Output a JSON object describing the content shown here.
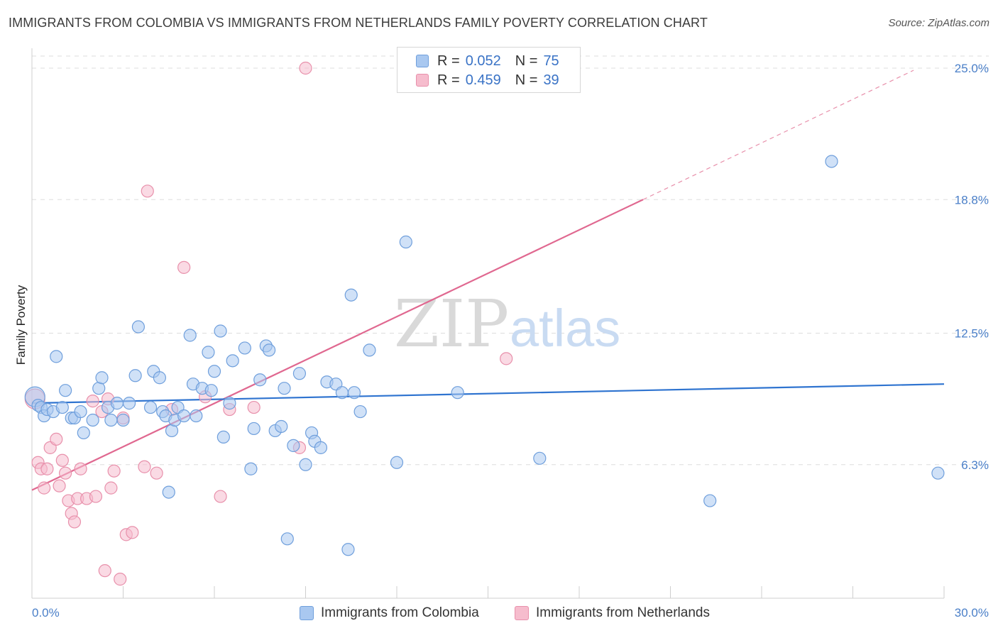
{
  "title": "IMMIGRANTS FROM COLOMBIA VS IMMIGRANTS FROM NETHERLANDS FAMILY POVERTY CORRELATION CHART",
  "source": "Source: ZipAtlas.com",
  "colors": {
    "blue_fill": "#a9c8f0",
    "blue_stroke": "#6f9fdc",
    "blue_line": "#2f74d0",
    "pink_fill": "#f6bccd",
    "pink_stroke": "#e890ab",
    "pink_line": "#e06890",
    "grid": "#dddddd",
    "tick_label": "#4a7fc8"
  },
  "legend": {
    "rows": [
      {
        "r_label": "R =",
        "r_value": "0.052",
        "n_label": "N =",
        "n_value": "75"
      },
      {
        "r_label": "R =",
        "r_value": "0.459",
        "n_label": "N =",
        "n_value": "39"
      }
    ]
  },
  "bottom_legend": {
    "series1": "Immigrants from Colombia",
    "series2": "Immigrants from Netherlands"
  },
  "chart_data": {
    "type": "scatter",
    "title": "IMMIGRANTS FROM COLOMBIA VS IMMIGRANTS FROM NETHERLANDS FAMILY POVERTY CORRELATION CHART",
    "xlabel": "",
    "ylabel": "Family Poverty",
    "xlim": [
      0,
      30
    ],
    "ylim": [
      0,
      25.6
    ],
    "x_tick_labels": [
      "0.0%",
      "30.0%"
    ],
    "y_ticks": [
      6.3,
      12.5,
      18.8,
      25.0
    ],
    "y_tick_labels": [
      "6.3%",
      "12.5%",
      "18.8%",
      "25.0%"
    ],
    "watermark": "ZIPatlas",
    "series": [
      {
        "name": "Immigrants from Colombia",
        "color": "blue",
        "trend": {
          "x": [
            0,
            30
          ],
          "y": [
            9.2,
            10.1
          ],
          "dashed_extension": false
        },
        "points": [
          [
            0.1,
            9.5
          ],
          [
            0.2,
            9.1
          ],
          [
            0.3,
            9.0
          ],
          [
            0.4,
            8.6
          ],
          [
            0.5,
            8.9
          ],
          [
            0.7,
            8.8
          ],
          [
            0.8,
            11.4
          ],
          [
            1.0,
            9.0
          ],
          [
            1.1,
            9.8
          ],
          [
            1.3,
            8.5
          ],
          [
            1.4,
            8.5
          ],
          [
            1.6,
            8.8
          ],
          [
            1.7,
            7.8
          ],
          [
            2.0,
            8.4
          ],
          [
            2.2,
            9.9
          ],
          [
            2.3,
            10.4
          ],
          [
            2.5,
            9.0
          ],
          [
            2.6,
            8.4
          ],
          [
            2.8,
            9.2
          ],
          [
            3.0,
            8.4
          ],
          [
            3.2,
            9.2
          ],
          [
            3.4,
            10.5
          ],
          [
            3.5,
            12.8
          ],
          [
            3.9,
            9.0
          ],
          [
            4.0,
            10.7
          ],
          [
            4.2,
            10.4
          ],
          [
            4.3,
            8.8
          ],
          [
            4.4,
            8.6
          ],
          [
            4.5,
            5.0
          ],
          [
            4.6,
            7.9
          ],
          [
            4.7,
            8.4
          ],
          [
            4.8,
            9.0
          ],
          [
            5.0,
            8.6
          ],
          [
            5.2,
            12.4
          ],
          [
            5.3,
            10.1
          ],
          [
            5.4,
            8.6
          ],
          [
            5.6,
            9.9
          ],
          [
            5.8,
            11.6
          ],
          [
            5.9,
            9.8
          ],
          [
            6.0,
            10.7
          ],
          [
            6.2,
            12.6
          ],
          [
            6.3,
            7.6
          ],
          [
            6.5,
            9.2
          ],
          [
            6.6,
            11.2
          ],
          [
            7.0,
            11.8
          ],
          [
            7.2,
            6.1
          ],
          [
            7.3,
            8.0
          ],
          [
            7.5,
            10.3
          ],
          [
            7.7,
            11.9
          ],
          [
            7.8,
            11.7
          ],
          [
            8.0,
            7.9
          ],
          [
            8.2,
            8.1
          ],
          [
            8.3,
            9.9
          ],
          [
            8.4,
            2.8
          ],
          [
            8.6,
            7.2
          ],
          [
            8.8,
            10.6
          ],
          [
            9.0,
            6.3
          ],
          [
            9.2,
            7.8
          ],
          [
            9.3,
            7.4
          ],
          [
            9.5,
            7.1
          ],
          [
            9.7,
            10.2
          ],
          [
            10.0,
            10.1
          ],
          [
            10.2,
            9.7
          ],
          [
            10.4,
            2.3
          ],
          [
            10.5,
            14.3
          ],
          [
            10.6,
            9.7
          ],
          [
            10.8,
            8.8
          ],
          [
            11.1,
            11.7
          ],
          [
            12.0,
            6.4
          ],
          [
            12.3,
            16.8
          ],
          [
            14.0,
            9.7
          ],
          [
            16.7,
            6.6
          ],
          [
            22.3,
            4.6
          ],
          [
            26.3,
            20.6
          ],
          [
            29.8,
            5.9
          ]
        ]
      },
      {
        "name": "Immigrants from Netherlands",
        "color": "pink",
        "trend": {
          "x": [
            0,
            20.1
          ],
          "y": [
            5.1,
            18.8
          ],
          "dashed_extension": true,
          "dashed_to": {
            "x": [
              20.1,
              29.0
            ],
            "y": [
              18.8,
              24.9
            ]
          }
        },
        "points": [
          [
            0.1,
            9.4
          ],
          [
            0.2,
            6.4
          ],
          [
            0.3,
            6.1
          ],
          [
            0.4,
            5.2
          ],
          [
            0.5,
            6.1
          ],
          [
            0.6,
            7.1
          ],
          [
            0.8,
            7.5
          ],
          [
            0.9,
            5.3
          ],
          [
            1.0,
            6.5
          ],
          [
            1.1,
            5.9
          ],
          [
            1.2,
            4.6
          ],
          [
            1.3,
            4.0
          ],
          [
            1.4,
            3.6
          ],
          [
            1.5,
            4.7
          ],
          [
            1.6,
            6.1
          ],
          [
            1.8,
            4.7
          ],
          [
            2.0,
            9.3
          ],
          [
            2.1,
            4.8
          ],
          [
            2.3,
            8.8
          ],
          [
            2.4,
            1.3
          ],
          [
            2.5,
            9.4
          ],
          [
            2.6,
            5.2
          ],
          [
            2.7,
            6.0
          ],
          [
            2.9,
            0.9
          ],
          [
            3.0,
            8.5
          ],
          [
            3.1,
            3.0
          ],
          [
            3.3,
            3.1
          ],
          [
            3.7,
            6.2
          ],
          [
            3.8,
            19.2
          ],
          [
            4.1,
            5.9
          ],
          [
            4.6,
            8.9
          ],
          [
            5.0,
            15.6
          ],
          [
            5.7,
            9.5
          ],
          [
            6.2,
            4.8
          ],
          [
            6.5,
            8.9
          ],
          [
            7.3,
            9.0
          ],
          [
            8.8,
            7.1
          ],
          [
            9.0,
            25.0
          ],
          [
            15.6,
            11.3
          ]
        ]
      }
    ]
  }
}
